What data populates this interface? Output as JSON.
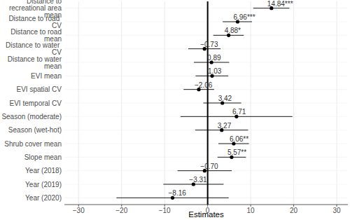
{
  "chart_data": {
    "type": "coefficient",
    "orientation": "horizontal",
    "x_label": "Estimates",
    "categories": [
      "Distance to recreational area mean",
      "Distance to road  CV",
      "Distance to road mean",
      "Distance to water  CV",
      "Distance to water mean",
      "EVI mean",
      "EVI spatial  CV",
      "EVI temporal  CV",
      "Season (moderate)",
      "Season (wet-hot)",
      "Shrub cover mean",
      "Slope mean",
      "Year (2018)",
      "Year (2019)",
      "Year (2020)"
    ],
    "values": [
      14.84,
      6.96,
      4.88,
      -0.73,
      0.89,
      1.03,
      -2.06,
      3.42,
      6.71,
      3.27,
      6.06,
      5.57,
      -0.7,
      -3.31,
      -8.16
    ],
    "value_labels": [
      "14.84***",
      "6.96***",
      "4.88*",
      "−0.73",
      "0.89",
      "1.03",
      "−2.06",
      "3.42",
      "6.71",
      "3.27",
      "6.06**",
      "5.57**",
      "−0.70",
      "−3.31",
      "−8.16"
    ],
    "ci_low": [
      10.6,
      3.5,
      1.3,
      -4.5,
      -3.2,
      -2.8,
      -5.6,
      -1.0,
      -6.3,
      -2.9,
      2.5,
      2.3,
      -7.0,
      -10.3,
      -21.2
    ],
    "ci_high": [
      19.0,
      10.3,
      8.4,
      3.0,
      5.0,
      4.8,
      1.5,
      7.8,
      19.7,
      9.4,
      9.6,
      8.9,
      5.6,
      3.7,
      4.9
    ],
    "xlim": [
      -33.3,
      32.6
    ],
    "xticks": [
      {
        "value": -30,
        "label": "−30"
      },
      {
        "value": -20,
        "label": "−20"
      },
      {
        "value": -10,
        "label": "−10"
      },
      0,
      10,
      20,
      30
    ],
    "grid": true,
    "data_labels": true,
    "color": "#000000",
    "marker": "circle"
  }
}
